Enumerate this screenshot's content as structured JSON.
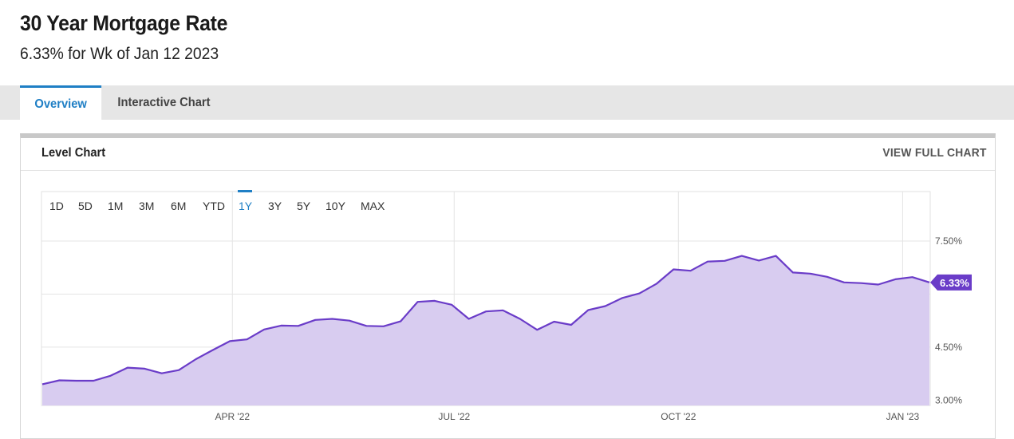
{
  "header": {
    "title": "30 Year Mortgage Rate",
    "subtitle": "6.33% for Wk of Jan 12 2023"
  },
  "tabs": [
    {
      "label": "Overview",
      "active": true
    },
    {
      "label": "Interactive Chart",
      "active": false
    }
  ],
  "panel": {
    "title": "Level Chart",
    "view_full_label": "VIEW FULL CHART"
  },
  "range_buttons": [
    "1D",
    "5D",
    "1M",
    "3M",
    "6M",
    "YTD",
    "1Y",
    "3Y",
    "5Y",
    "10Y",
    "MAX"
  ],
  "active_range": "1Y",
  "colors": {
    "accent": "#1f7fc5",
    "line": "#6a3cc8",
    "fill": "#d8ccf0",
    "badge": "#6a3cc8"
  },
  "chart_data": {
    "type": "area",
    "x_tick_labels": [
      "APR '22",
      "JUL '22",
      "OCT '22",
      "JAN '23"
    ],
    "y_tick_labels": [
      "3.00%",
      "4.50%",
      "7.50%"
    ],
    "ylim": [
      2.85,
      8.9
    ],
    "last_value_label": "6.33%",
    "series": [
      {
        "x": [
          "2022-01-13",
          "2022-01-20",
          "2022-01-27",
          "2022-02-03",
          "2022-02-10",
          "2022-02-17",
          "2022-02-24",
          "2022-03-03",
          "2022-03-10",
          "2022-03-17",
          "2022-03-24",
          "2022-03-31",
          "2022-04-07",
          "2022-04-14",
          "2022-04-21",
          "2022-04-28",
          "2022-05-05",
          "2022-05-12",
          "2022-05-19",
          "2022-05-26",
          "2022-06-02",
          "2022-06-09",
          "2022-06-16",
          "2022-06-23",
          "2022-06-30",
          "2022-07-07",
          "2022-07-14",
          "2022-07-21",
          "2022-07-28",
          "2022-08-04",
          "2022-08-11",
          "2022-08-18",
          "2022-08-25",
          "2022-09-01",
          "2022-09-08",
          "2022-09-15",
          "2022-09-22",
          "2022-09-29",
          "2022-10-06",
          "2022-10-13",
          "2022-10-20",
          "2022-10-27",
          "2022-11-03",
          "2022-11-10",
          "2022-11-17",
          "2022-11-24",
          "2022-12-01",
          "2022-12-08",
          "2022-12-15",
          "2022-12-22",
          "2022-12-29",
          "2023-01-05",
          "2023-01-12"
        ],
        "values": [
          3.45,
          3.56,
          3.55,
          3.55,
          3.69,
          3.92,
          3.89,
          3.76,
          3.85,
          4.16,
          4.42,
          4.67,
          4.72,
          5.0,
          5.11,
          5.1,
          5.27,
          5.3,
          5.25,
          5.1,
          5.09,
          5.23,
          5.78,
          5.81,
          5.7,
          5.3,
          5.51,
          5.54,
          5.3,
          4.99,
          5.22,
          5.13,
          5.55,
          5.66,
          5.89,
          6.02,
          6.29,
          6.7,
          6.66,
          6.92,
          6.94,
          7.08,
          6.95,
          7.08,
          6.61,
          6.58,
          6.49,
          6.33,
          6.31,
          6.27,
          6.42,
          6.48,
          6.33
        ]
      }
    ]
  }
}
